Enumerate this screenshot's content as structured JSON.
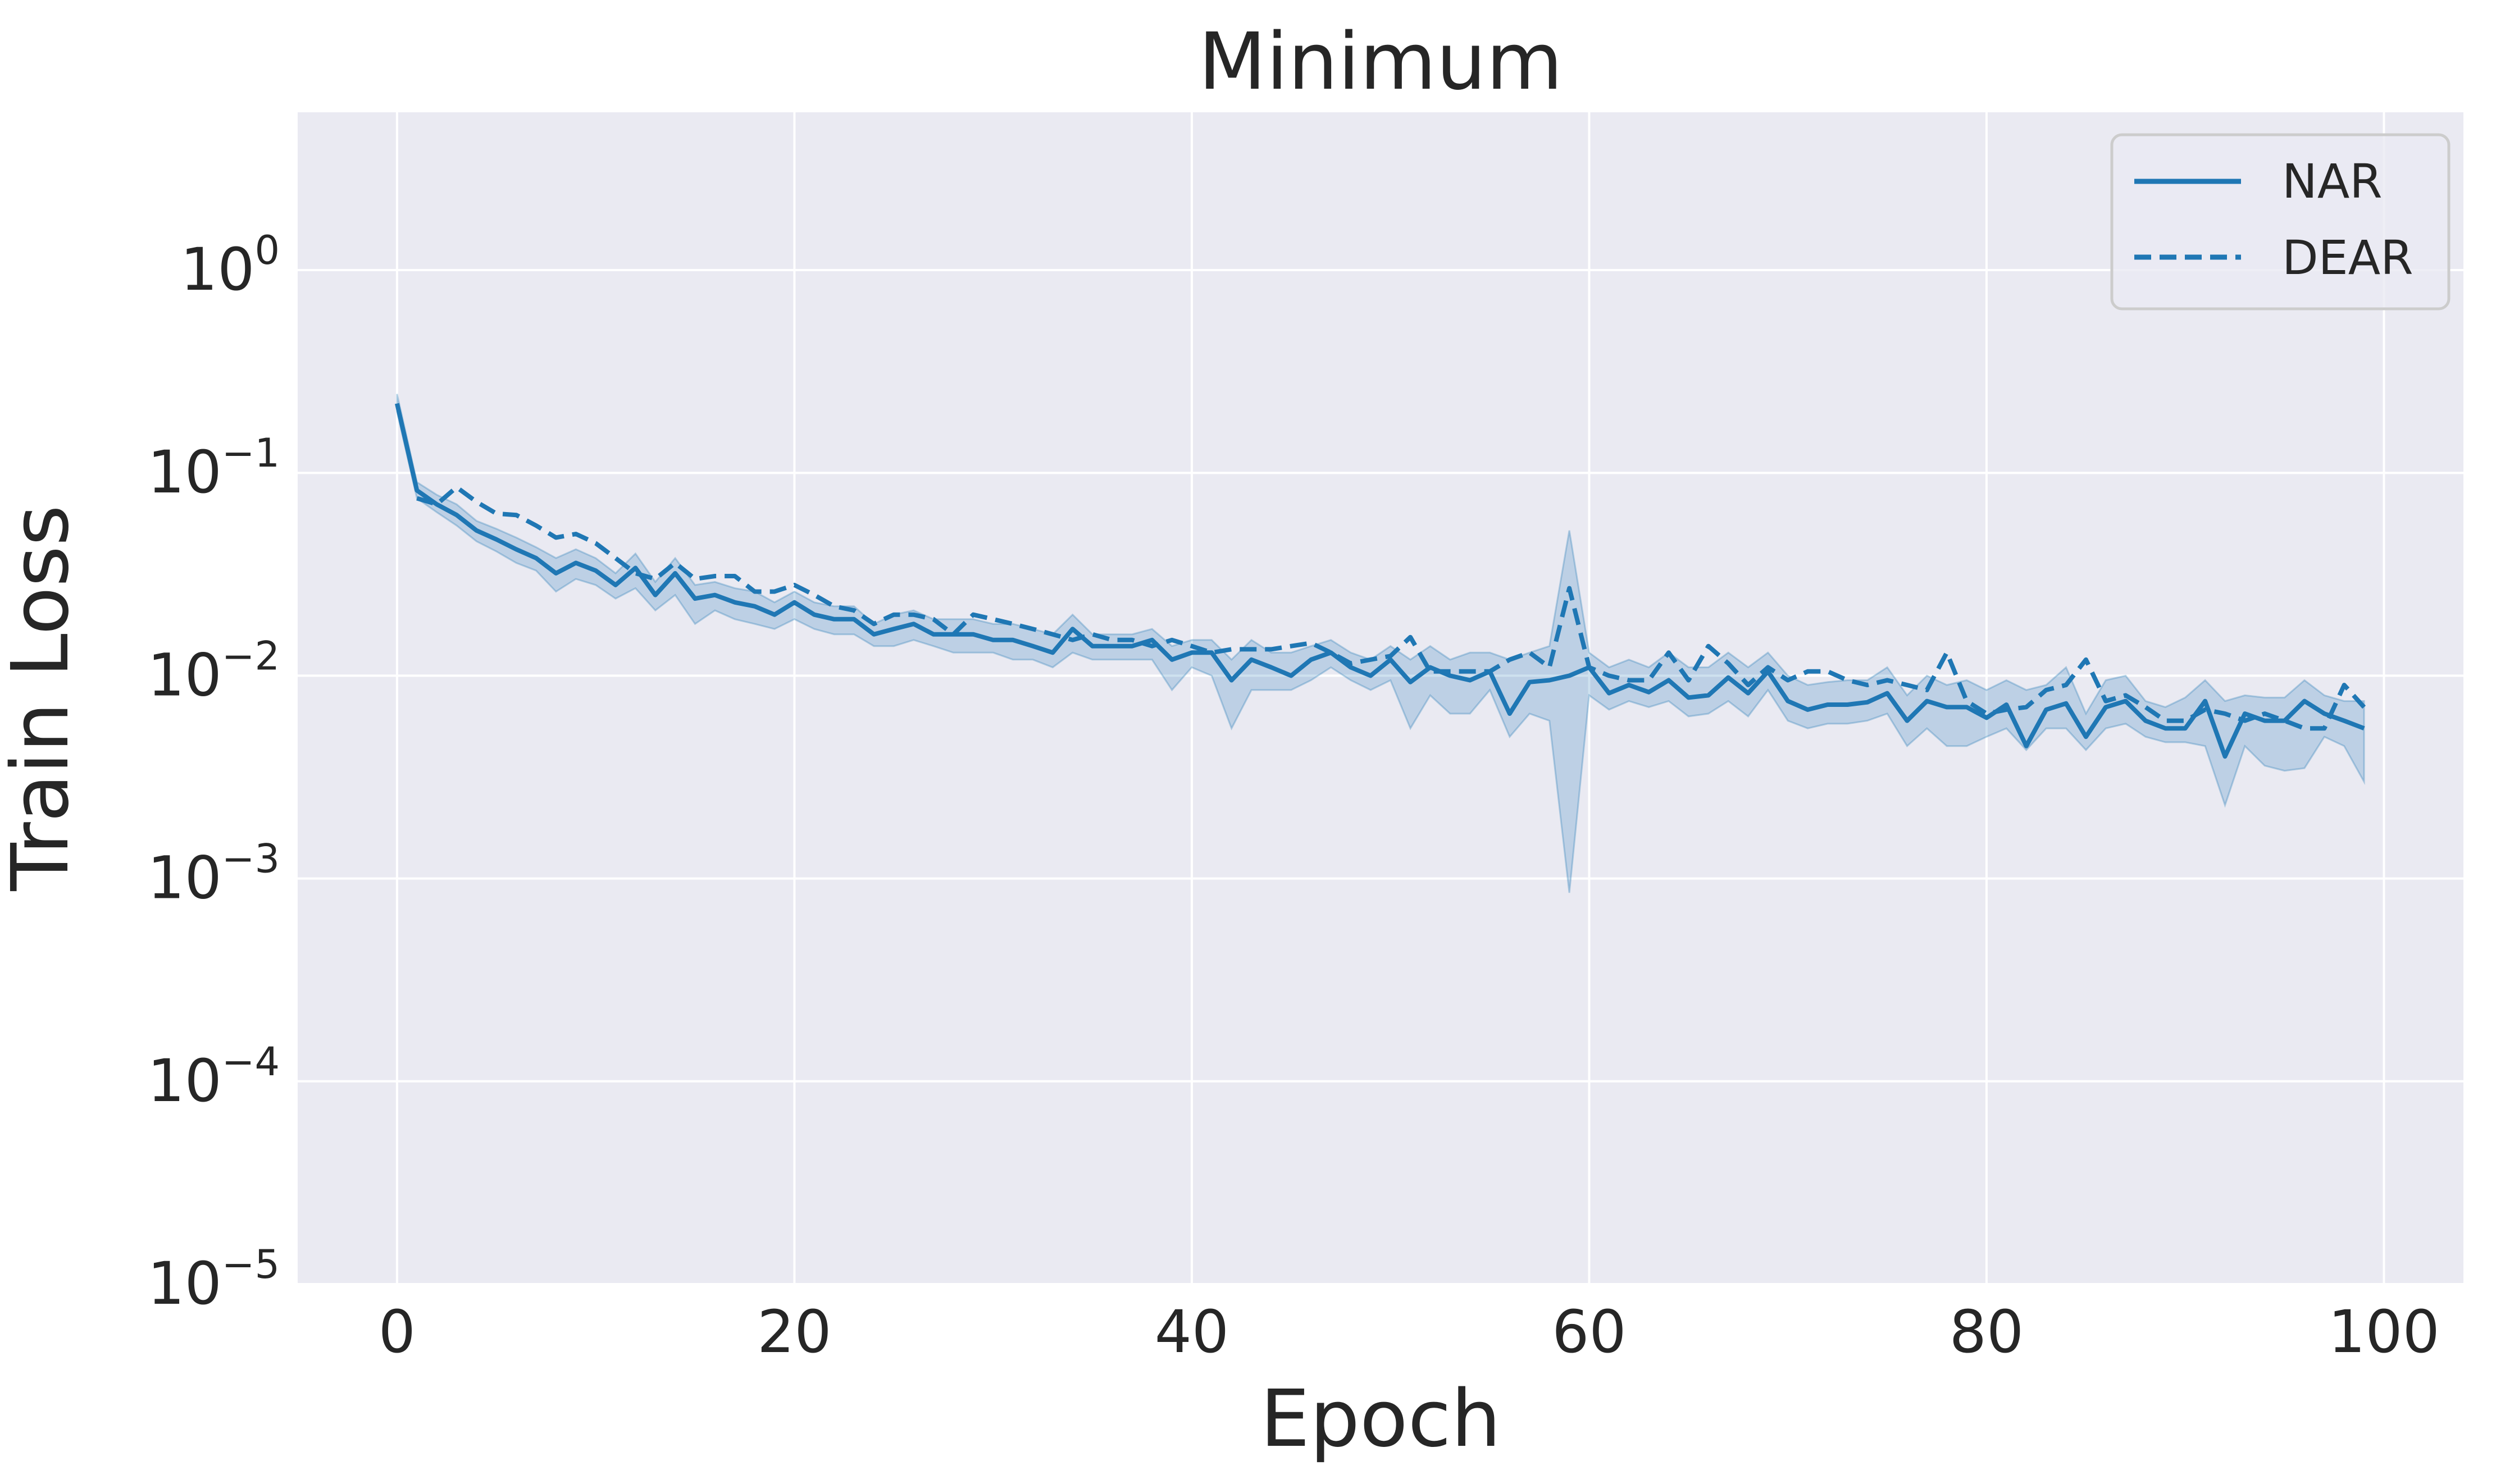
{
  "chart_data": {
    "type": "line",
    "title": "Minimum",
    "xlabel": "Epoch",
    "ylabel": "Train Loss",
    "yscale": "log",
    "xlim": [
      -5,
      104
    ],
    "ylim": [
      1e-05,
      6
    ],
    "xticks": [
      0,
      20,
      40,
      60,
      80,
      100
    ],
    "yticks": [
      {
        "value": 1,
        "base": "10",
        "exp": "0"
      },
      {
        "value": 0.1,
        "base": "10",
        "exp": "−1"
      },
      {
        "value": 0.01,
        "base": "10",
        "exp": "−2"
      },
      {
        "value": 0.001,
        "base": "10",
        "exp": "−3"
      },
      {
        "value": 0.0001,
        "base": "10",
        "exp": "−4"
      },
      {
        "value": 1e-05,
        "base": "10",
        "exp": "−5"
      }
    ],
    "grid": true,
    "legend": "top-right",
    "colors": {
      "line": "#1f77b4",
      "band": "#1f77b4",
      "background": "#eaeaf2",
      "grid": "#ffffff"
    },
    "series": [
      {
        "name": "NAR",
        "style": "solid",
        "x": [
          0,
          1,
          2,
          3,
          4,
          5,
          6,
          7,
          8,
          9,
          10,
          11,
          12,
          13,
          14,
          15,
          16,
          17,
          18,
          19,
          20,
          21,
          22,
          23,
          24,
          25,
          26,
          27,
          28,
          29,
          30,
          31,
          32,
          33,
          34,
          35,
          36,
          37,
          38,
          39,
          40,
          41,
          42,
          43,
          44,
          45,
          46,
          47,
          48,
          49,
          50,
          51,
          52,
          53,
          54,
          55,
          56,
          57,
          58,
          59,
          60,
          61,
          62,
          63,
          64,
          65,
          66,
          67,
          68,
          69,
          70,
          71,
          72,
          73,
          74,
          75,
          76,
          77,
          78,
          79,
          80,
          81,
          82,
          83,
          84,
          85,
          86,
          87,
          88,
          89,
          90,
          91,
          92,
          93,
          94,
          95,
          96,
          97,
          98,
          99
        ],
        "values": [
          0.22,
          0.082,
          0.07,
          0.062,
          0.052,
          0.047,
          0.042,
          0.038,
          0.032,
          0.036,
          0.033,
          0.028,
          0.034,
          0.025,
          0.032,
          0.024,
          0.025,
          0.023,
          0.022,
          0.02,
          0.023,
          0.02,
          0.019,
          0.019,
          0.016,
          0.017,
          0.018,
          0.016,
          0.016,
          0.016,
          0.015,
          0.015,
          0.014,
          0.013,
          0.017,
          0.014,
          0.014,
          0.014,
          0.015,
          0.012,
          0.013,
          0.013,
          0.0095,
          0.012,
          0.011,
          0.01,
          0.012,
          0.013,
          0.011,
          0.01,
          0.012,
          0.0093,
          0.011,
          0.01,
          0.0095,
          0.0105,
          0.0065,
          0.0093,
          0.0095,
          0.01,
          0.011,
          0.0082,
          0.009,
          0.0083,
          0.0095,
          0.0078,
          0.008,
          0.0098,
          0.0082,
          0.0105,
          0.0075,
          0.0068,
          0.0072,
          0.0072,
          0.0074,
          0.0082,
          0.006,
          0.0075,
          0.007,
          0.007,
          0.0062,
          0.0072,
          0.0045,
          0.0068,
          0.0073,
          0.005,
          0.007,
          0.0075,
          0.006,
          0.0055,
          0.0055,
          0.0075,
          0.004,
          0.0065,
          0.006,
          0.006,
          0.0075,
          0.0065,
          0.006,
          0.0055
        ],
        "lower": [
          0.2,
          0.075,
          0.064,
          0.055,
          0.046,
          0.041,
          0.036,
          0.033,
          0.026,
          0.03,
          0.028,
          0.024,
          0.027,
          0.021,
          0.025,
          0.018,
          0.021,
          0.019,
          0.018,
          0.017,
          0.019,
          0.017,
          0.016,
          0.016,
          0.014,
          0.014,
          0.015,
          0.014,
          0.013,
          0.013,
          0.013,
          0.012,
          0.012,
          0.011,
          0.013,
          0.012,
          0.012,
          0.012,
          0.012,
          0.0085,
          0.011,
          0.01,
          0.0055,
          0.0085,
          0.0085,
          0.0085,
          0.0095,
          0.011,
          0.0095,
          0.0085,
          0.0095,
          0.0055,
          0.008,
          0.0065,
          0.0065,
          0.0085,
          0.005,
          0.0065,
          0.006,
          0.00085,
          0.008,
          0.0068,
          0.0075,
          0.007,
          0.0075,
          0.0063,
          0.0065,
          0.0075,
          0.0063,
          0.0085,
          0.006,
          0.0055,
          0.0058,
          0.0058,
          0.006,
          0.0065,
          0.0045,
          0.0055,
          0.0045,
          0.0045,
          0.005,
          0.0055,
          0.0043,
          0.0055,
          0.0055,
          0.0043,
          0.0055,
          0.0058,
          0.005,
          0.0047,
          0.0047,
          0.0045,
          0.0023,
          0.0045,
          0.0036,
          0.0034,
          0.0035,
          0.005,
          0.0045,
          0.003
        ],
        "upper": [
          0.245,
          0.09,
          0.078,
          0.07,
          0.058,
          0.053,
          0.048,
          0.043,
          0.038,
          0.042,
          0.038,
          0.032,
          0.04,
          0.029,
          0.038,
          0.028,
          0.029,
          0.027,
          0.026,
          0.023,
          0.026,
          0.023,
          0.022,
          0.022,
          0.018,
          0.02,
          0.021,
          0.019,
          0.019,
          0.019,
          0.018,
          0.018,
          0.017,
          0.016,
          0.02,
          0.016,
          0.016,
          0.016,
          0.017,
          0.014,
          0.015,
          0.015,
          0.012,
          0.015,
          0.013,
          0.013,
          0.014,
          0.015,
          0.013,
          0.012,
          0.014,
          0.012,
          0.014,
          0.012,
          0.013,
          0.013,
          0.012,
          0.013,
          0.014,
          0.052,
          0.013,
          0.011,
          0.012,
          0.011,
          0.013,
          0.011,
          0.011,
          0.013,
          0.011,
          0.013,
          0.01,
          0.009,
          0.0093,
          0.0095,
          0.0095,
          0.011,
          0.008,
          0.01,
          0.009,
          0.0095,
          0.0085,
          0.0095,
          0.0085,
          0.009,
          0.011,
          0.0065,
          0.0095,
          0.01,
          0.0075,
          0.007,
          0.0078,
          0.0095,
          0.0075,
          0.008,
          0.0078,
          0.0078,
          0.0095,
          0.008,
          0.0075,
          0.0075
        ]
      },
      {
        "name": "DEAR",
        "style": "dashed",
        "x": [
          1,
          2,
          3,
          4,
          5,
          6,
          7,
          8,
          9,
          10,
          11,
          12,
          13,
          14,
          15,
          16,
          17,
          18,
          19,
          20,
          21,
          22,
          23,
          24,
          25,
          26,
          27,
          28,
          29,
          30,
          31,
          32,
          33,
          34,
          35,
          36,
          37,
          38,
          39,
          40,
          41,
          42,
          43,
          44,
          45,
          46,
          47,
          48,
          49,
          50,
          51,
          52,
          53,
          54,
          55,
          56,
          57,
          58,
          59,
          60,
          61,
          62,
          63,
          64,
          65,
          66,
          67,
          68,
          69,
          70,
          71,
          72,
          73,
          74,
          75,
          76,
          77,
          78,
          79,
          80,
          81,
          82,
          83,
          84,
          85,
          86,
          87,
          88,
          89,
          90,
          91,
          92,
          93,
          94,
          95,
          96,
          97,
          98,
          99
        ],
        "values": [
          0.075,
          0.07,
          0.085,
          0.072,
          0.063,
          0.062,
          0.055,
          0.048,
          0.05,
          0.045,
          0.038,
          0.032,
          0.03,
          0.036,
          0.03,
          0.031,
          0.031,
          0.026,
          0.026,
          0.028,
          0.025,
          0.022,
          0.021,
          0.018,
          0.02,
          0.02,
          0.019,
          0.016,
          0.02,
          0.019,
          0.018,
          0.017,
          0.016,
          0.015,
          0.016,
          0.015,
          0.015,
          0.014,
          0.015,
          0.014,
          0.013,
          0.0135,
          0.0135,
          0.0135,
          0.014,
          0.0145,
          0.013,
          0.0115,
          0.012,
          0.0125,
          0.0155,
          0.0105,
          0.0105,
          0.0105,
          0.0105,
          0.012,
          0.013,
          0.011,
          0.027,
          0.011,
          0.01,
          0.0095,
          0.0095,
          0.013,
          0.0095,
          0.014,
          0.0115,
          0.009,
          0.011,
          0.0095,
          0.0105,
          0.0105,
          0.0095,
          0.009,
          0.0095,
          0.009,
          0.0085,
          0.013,
          0.0075,
          0.0065,
          0.0068,
          0.007,
          0.0085,
          0.009,
          0.012,
          0.0075,
          0.008,
          0.007,
          0.006,
          0.006,
          0.0068,
          0.0065,
          0.006,
          0.0065,
          0.006,
          0.0055,
          0.0055,
          0.009,
          0.007
        ]
      }
    ]
  }
}
